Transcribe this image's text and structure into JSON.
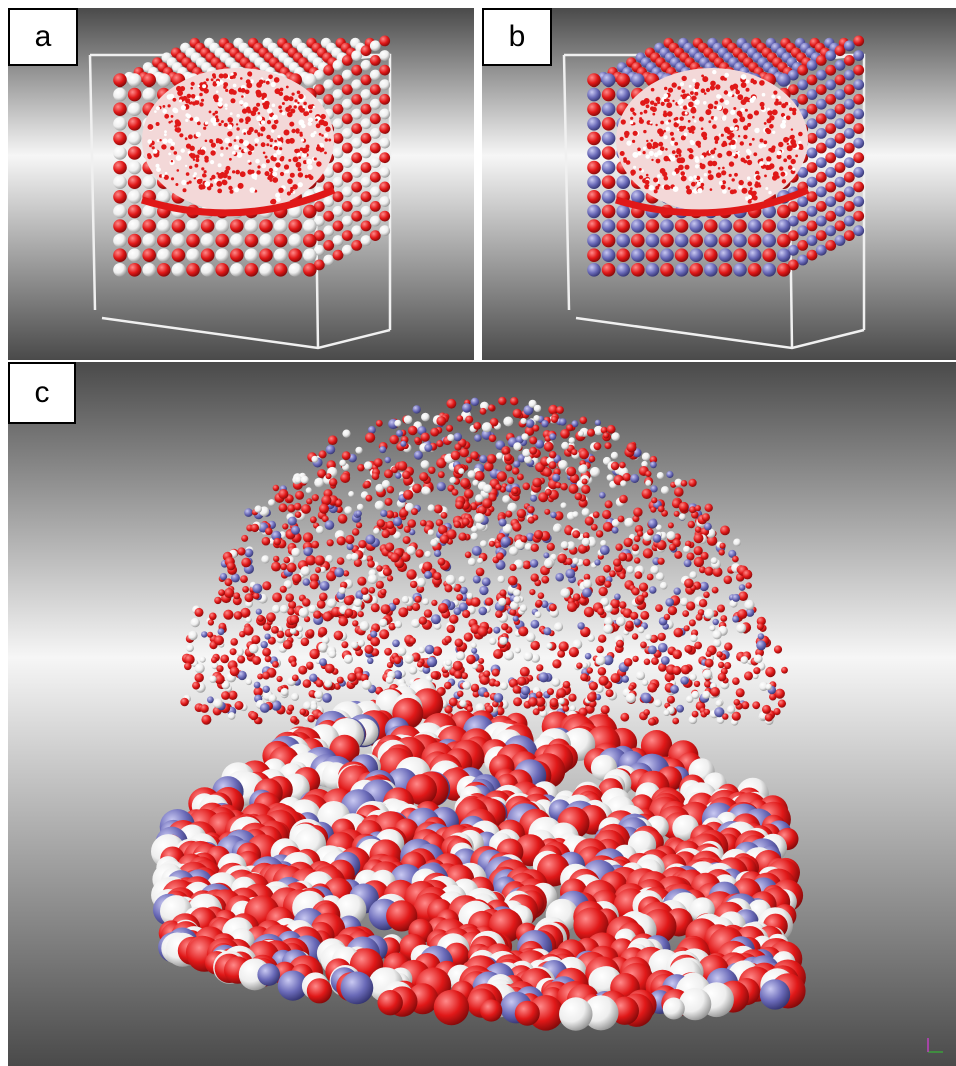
{
  "panels": [
    {
      "label": "a",
      "scene": "cube",
      "surface_atom": "white"
    },
    {
      "label": "b",
      "scene": "cube",
      "surface_atom": "blue"
    },
    {
      "label": "c",
      "scene": "droplet"
    }
  ],
  "colors": {
    "oxygen_red": "#e01818",
    "white_atom": "#eeeeee",
    "blue_atom": "#6a6ab8",
    "background_dark": "#4a4a4a",
    "background_light": "#f6f6f6",
    "box_frame": "#f0f0f0"
  }
}
